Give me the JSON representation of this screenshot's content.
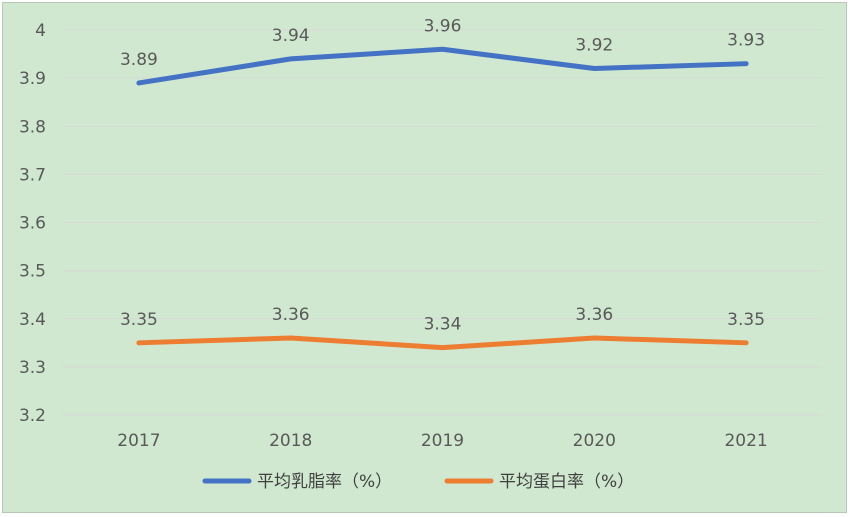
{
  "chart_data": {
    "type": "line",
    "categories": [
      "2017",
      "2018",
      "2019",
      "2020",
      "2021"
    ],
    "series": [
      {
        "name": "平均乳脂率（%）",
        "values": [
          3.89,
          3.94,
          3.96,
          3.92,
          3.93
        ],
        "color": "#4472c4"
      },
      {
        "name": "平均蛋白率（%）",
        "values": [
          3.35,
          3.36,
          3.34,
          3.36,
          3.35
        ],
        "color": "#ed7d31"
      }
    ],
    "y_ticks": [
      "3.2",
      "3.3",
      "3.4",
      "3.5",
      "3.6",
      "3.7",
      "3.8",
      "3.9",
      "4"
    ],
    "ylim": [
      3.2,
      4.0
    ],
    "grid": true,
    "legend_position": "bottom",
    "background_color": "#cfe8cf"
  }
}
